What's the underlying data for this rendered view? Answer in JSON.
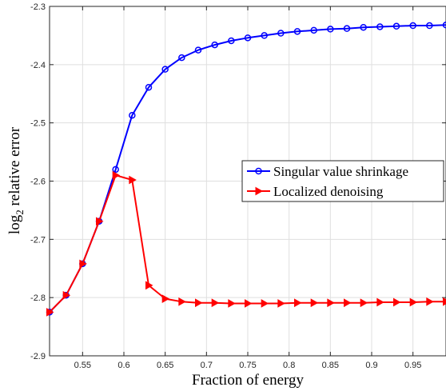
{
  "chart_data": {
    "type": "line",
    "title": "",
    "xlabel": "Fraction of energy",
    "ylabel_main": "log",
    "ylabel_sub": "2",
    "ylabel_rest": " relative error",
    "xlim": [
      0.51,
      0.99
    ],
    "ylim": [
      -2.9,
      -2.3
    ],
    "xticks": [
      0.55,
      0.6,
      0.65,
      0.7,
      0.75,
      0.8,
      0.85,
      0.9,
      0.95
    ],
    "xtick_labels": [
      "0.55",
      "0.6",
      "0.65",
      "0.7",
      "0.75",
      "0.8",
      "0.85",
      "0.9",
      "0.95"
    ],
    "yticks": [
      -2.9,
      -2.8,
      -2.7,
      -2.6,
      -2.5,
      -2.4,
      -2.3
    ],
    "ytick_labels": [
      "-2.9",
      "-2.8",
      "-2.7",
      "-2.6",
      "-2.5",
      "-2.4",
      "-2.3"
    ],
    "grid": true,
    "legend_position": "center-right",
    "x": [
      0.51,
      0.53,
      0.55,
      0.57,
      0.59,
      0.61,
      0.63,
      0.65,
      0.67,
      0.69,
      0.71,
      0.73,
      0.75,
      0.77,
      0.79,
      0.81,
      0.83,
      0.85,
      0.87,
      0.89,
      0.91,
      0.93,
      0.95,
      0.97,
      0.99
    ],
    "series": [
      {
        "name": "Singular value shrinkage",
        "color": "#0000ff",
        "marker": "circle",
        "values": [
          -2.825,
          -2.796,
          -2.742,
          -2.669,
          -2.58,
          -2.487,
          -2.439,
          -2.408,
          -2.388,
          -2.375,
          -2.366,
          -2.359,
          -2.354,
          -2.35,
          -2.346,
          -2.343,
          -2.341,
          -2.339,
          -2.338,
          -2.336,
          -2.335,
          -2.334,
          -2.333,
          -2.333,
          -2.332
        ]
      },
      {
        "name": "Localized denoising",
        "color": "#ff0000",
        "marker": "triangle-right",
        "values": [
          -2.825,
          -2.796,
          -2.742,
          -2.669,
          -2.59,
          -2.598,
          -2.779,
          -2.802,
          -2.807,
          -2.809,
          -2.809,
          -2.81,
          -2.81,
          -2.81,
          -2.81,
          -2.809,
          -2.809,
          -2.809,
          -2.809,
          -2.809,
          -2.808,
          -2.808,
          -2.808,
          -2.807,
          -2.807
        ]
      }
    ]
  }
}
